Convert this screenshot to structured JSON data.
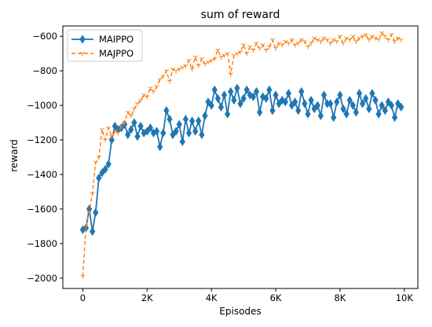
{
  "chart_data": {
    "type": "line",
    "title": "sum of reward",
    "xlabel": "Episodes",
    "ylabel": "reward",
    "xlim": [
      -620,
      10420
    ],
    "ylim": [
      -2060,
      -540
    ],
    "xticks": [
      {
        "value": 0,
        "label": "0"
      },
      {
        "value": 2000,
        "label": "2K"
      },
      {
        "value": 4000,
        "label": "4K"
      },
      {
        "value": 6000,
        "label": "6K"
      },
      {
        "value": 8000,
        "label": "8K"
      },
      {
        "value": 10000,
        "label": "10K"
      }
    ],
    "yticks": [
      {
        "value": -2000,
        "label": "−2000"
      },
      {
        "value": -1800,
        "label": "−1800"
      },
      {
        "value": -1600,
        "label": "−1600"
      },
      {
        "value": -1400,
        "label": "−1400"
      },
      {
        "value": -1200,
        "label": "−1200"
      },
      {
        "value": -1000,
        "label": "−1000"
      },
      {
        "value": -800,
        "label": "−800"
      },
      {
        "value": -600,
        "label": "−600"
      }
    ],
    "grid": false,
    "legend_position": "top-left",
    "series": [
      {
        "name": "MAIPPO",
        "color": "#1f77b4",
        "style": "solid",
        "marker": "diamond",
        "x": [
          0,
          100,
          200,
          300,
          400,
          500,
          600,
          700,
          800,
          900,
          1000,
          1100,
          1200,
          1300,
          1400,
          1500,
          1600,
          1700,
          1800,
          1900,
          2000,
          2100,
          2200,
          2300,
          2400,
          2500,
          2600,
          2700,
          2800,
          2900,
          3000,
          3100,
          3200,
          3300,
          3400,
          3500,
          3600,
          3700,
          3800,
          3900,
          4000,
          4100,
          4200,
          4300,
          4400,
          4500,
          4600,
          4700,
          4800,
          4900,
          5000,
          5100,
          5200,
          5300,
          5400,
          5500,
          5600,
          5700,
          5800,
          5900,
          6000,
          6100,
          6200,
          6300,
          6400,
          6500,
          6600,
          6700,
          6800,
          6900,
          7000,
          7100,
          7200,
          7300,
          7400,
          7500,
          7600,
          7700,
          7800,
          7900,
          8000,
          8100,
          8200,
          8300,
          8400,
          8500,
          8600,
          8700,
          8800,
          8900,
          9000,
          9100,
          9200,
          9300,
          9400,
          9500,
          9600,
          9700,
          9800,
          9900
        ],
        "y": [
          -1720,
          -1710,
          -1600,
          -1730,
          -1620,
          -1420,
          -1390,
          -1370,
          -1340,
          -1200,
          -1120,
          -1140,
          -1130,
          -1110,
          -1170,
          -1140,
          -1100,
          -1180,
          -1120,
          -1160,
          -1150,
          -1130,
          -1160,
          -1150,
          -1240,
          -1160,
          -1030,
          -1080,
          -1170,
          -1150,
          -1110,
          -1210,
          -1080,
          -1160,
          -1090,
          -1150,
          -1090,
          -1170,
          -1060,
          -980,
          -1000,
          -910,
          -960,
          -1010,
          -940,
          -1050,
          -920,
          -970,
          -900,
          -990,
          -960,
          -910,
          -940,
          -950,
          -920,
          -1040,
          -950,
          -960,
          -910,
          -1030,
          -940,
          -990,
          -970,
          -980,
          -930,
          -1000,
          -980,
          -1030,
          -920,
          -990,
          -1050,
          -970,
          -1020,
          -1000,
          -1060,
          -940,
          -990,
          -990,
          -1070,
          -980,
          -940,
          -1020,
          -1050,
          -970,
          -1000,
          -1040,
          -930,
          -990,
          -960,
          -1020,
          -930,
          -970,
          -1050,
          -1000,
          -1030,
          -980,
          -1000,
          -1070,
          -990,
          -1010
        ]
      },
      {
        "name": "MAJPPO",
        "color": "#ff7f0e",
        "style": "dashed",
        "marker": "tri_down",
        "x": [
          0,
          100,
          200,
          300,
          400,
          500,
          600,
          700,
          800,
          900,
          1000,
          1100,
          1200,
          1300,
          1400,
          1500,
          1600,
          1700,
          1800,
          1900,
          2000,
          2100,
          2200,
          2300,
          2400,
          2500,
          2600,
          2700,
          2800,
          2900,
          3000,
          3100,
          3200,
          3300,
          3400,
          3500,
          3600,
          3700,
          3800,
          3900,
          4000,
          4100,
          4200,
          4300,
          4400,
          4500,
          4600,
          4700,
          4800,
          4900,
          5000,
          5100,
          5200,
          5300,
          5400,
          5500,
          5600,
          5700,
          5800,
          5900,
          6000,
          6100,
          6200,
          6300,
          6400,
          6500,
          6600,
          6700,
          6800,
          6900,
          7000,
          7100,
          7200,
          7300,
          7400,
          7500,
          7600,
          7700,
          7800,
          7900,
          8000,
          8100,
          8200,
          8300,
          8400,
          8500,
          8600,
          8700,
          8800,
          8900,
          9000,
          9100,
          9200,
          9300,
          9400,
          9500,
          9600,
          9700,
          9800,
          9900
        ],
        "y": [
          -1990,
          -1700,
          -1620,
          -1510,
          -1330,
          -1300,
          -1140,
          -1200,
          -1130,
          -1180,
          -1150,
          -1160,
          -1120,
          -1100,
          -1040,
          -1060,
          -1020,
          -990,
          -970,
          -940,
          -950,
          -900,
          -920,
          -890,
          -850,
          -830,
          -800,
          -860,
          -790,
          -800,
          -790,
          -780,
          -770,
          -740,
          -790,
          -720,
          -770,
          -730,
          -760,
          -750,
          -740,
          -730,
          -680,
          -720,
          -710,
          -700,
          -820,
          -710,
          -700,
          -690,
          -650,
          -700,
          -660,
          -680,
          -640,
          -670,
          -650,
          -680,
          -660,
          -620,
          -670,
          -640,
          -650,
          -630,
          -640,
          -620,
          -650,
          -640,
          -620,
          -630,
          -660,
          -640,
          -610,
          -620,
          -630,
          -610,
          -620,
          -640,
          -620,
          -630,
          -600,
          -640,
          -610,
          -620,
          -600,
          -630,
          -610,
          -600,
          -590,
          -620,
          -600,
          -610,
          -620,
          -580,
          -600,
          -620,
          -590,
          -630,
          -610,
          -620
        ]
      }
    ]
  }
}
